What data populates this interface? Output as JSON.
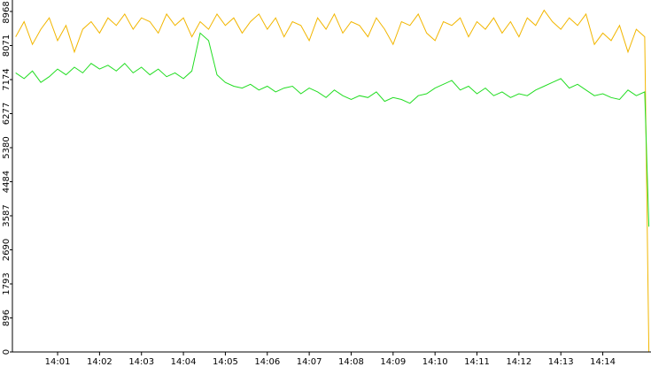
{
  "chart_data": {
    "type": "line",
    "x": [
      0,
      0.2,
      0.4,
      0.6,
      0.8,
      1,
      1.2,
      1.4,
      1.6,
      1.8,
      2,
      2.2,
      2.4,
      2.6,
      2.8,
      3,
      3.2,
      3.4,
      3.6,
      3.8,
      4,
      4.2,
      4.4,
      4.6,
      4.8,
      5,
      5.2,
      5.4,
      5.6,
      5.8,
      6,
      6.2,
      6.4,
      6.6,
      6.8,
      7,
      7.2,
      7.4,
      7.6,
      7.8,
      8,
      8.2,
      8.4,
      8.6,
      8.8,
      9,
      9.2,
      9.4,
      9.6,
      9.8,
      10,
      10.2,
      10.4,
      10.6,
      10.8,
      11,
      11.2,
      11.4,
      11.6,
      11.8,
      12,
      12.2,
      12.4,
      12.6,
      12.8,
      13,
      13.2,
      13.4,
      13.6,
      13.8,
      14,
      14.2,
      14.4,
      14.6,
      14.8,
      15,
      15.1
    ],
    "series": [
      {
        "color": "#f2b600",
        "values": [
          8300,
          8700,
          8100,
          8500,
          8800,
          8200,
          8600,
          7900,
          8500,
          8700,
          8400,
          8800,
          8600,
          8900,
          8500,
          8800,
          8700,
          8400,
          8900,
          8600,
          8800,
          8300,
          8700,
          8500,
          8900,
          8600,
          8800,
          8400,
          8700,
          8900,
          8500,
          8800,
          8300,
          8700,
          8600,
          8200,
          8800,
          8500,
          8900,
          8400,
          8700,
          8600,
          8300,
          8800,
          8500,
          8100,
          8700,
          8600,
          8900,
          8400,
          8200,
          8700,
          8600,
          8800,
          8300,
          8700,
          8500,
          8800,
          8400,
          8700,
          8300,
          8800,
          8600,
          9000,
          8700,
          8500,
          8800,
          8600,
          8900,
          8100,
          8400,
          8200,
          8600,
          7900,
          8500,
          8300,
          0
        ]
      },
      {
        "color": "#22dd22",
        "values": [
          7350,
          7200,
          7400,
          7100,
          7250,
          7450,
          7300,
          7500,
          7350,
          7600,
          7450,
          7550,
          7400,
          7600,
          7350,
          7500,
          7300,
          7450,
          7250,
          7350,
          7200,
          7400,
          8400,
          8200,
          7300,
          7100,
          7000,
          6950,
          7050,
          6900,
          7000,
          6850,
          6950,
          7000,
          6800,
          6950,
          6850,
          6700,
          6900,
          6750,
          6650,
          6750,
          6700,
          6850,
          6600,
          6700,
          6650,
          6550,
          6750,
          6800,
          6950,
          7050,
          7150,
          6900,
          7000,
          6800,
          6950,
          6750,
          6850,
          6700,
          6800,
          6750,
          6900,
          7000,
          7100,
          7200,
          6950,
          7050,
          6900,
          6750,
          6800,
          6700,
          6650,
          6900,
          6750,
          6850,
          3300
        ]
      }
    ],
    "xlim": [
      -0.078,
      15.15
    ],
    "xticks": [
      {
        "value": 1,
        "label": "14:01"
      },
      {
        "value": 2,
        "label": "14:02"
      },
      {
        "value": 3,
        "label": "14:03"
      },
      {
        "value": 4,
        "label": "14:04"
      },
      {
        "value": 5,
        "label": "14:05"
      },
      {
        "value": 6,
        "label": "14:06"
      },
      {
        "value": 7,
        "label": "14:07"
      },
      {
        "value": 8,
        "label": "14:08"
      },
      {
        "value": 9,
        "label": "14:09"
      },
      {
        "value": 10,
        "label": "14:10"
      },
      {
        "value": 11,
        "label": "14:11"
      },
      {
        "value": 12,
        "label": "14:12"
      },
      {
        "value": 13,
        "label": "14:13"
      },
      {
        "value": 14,
        "label": "14:14"
      }
    ],
    "ylim": [
      0,
      9270
    ],
    "yticks": [
      0,
      896,
      1793,
      2690,
      3587,
      4484,
      5380,
      6277,
      7174,
      8071,
      8968
    ]
  }
}
